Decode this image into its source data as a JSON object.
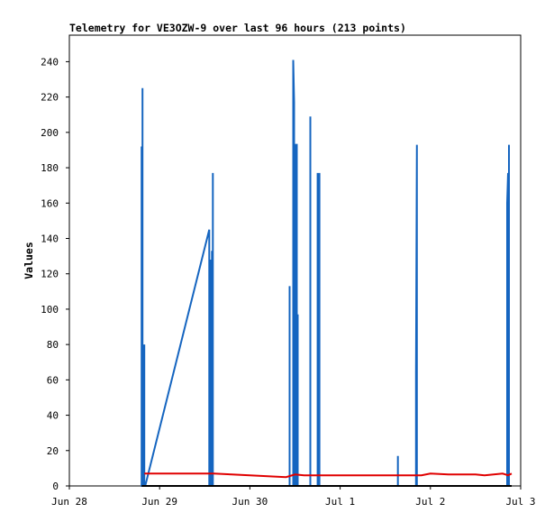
{
  "chart_data": {
    "type": "line",
    "title": "Telemetry for VE3OZW-9 over last 96 hours (213 points)",
    "xlabel": "",
    "ylabel": "Values",
    "x_tick_labels": [
      "Jun 28",
      "Jun 29",
      "Jun 30",
      "Jul 1",
      "Jul 2",
      "Jul 3"
    ],
    "x_tick_values": [
      0,
      1,
      2,
      3,
      4,
      5
    ],
    "xlim": [
      0,
      5
    ],
    "ylim": [
      0,
      255
    ],
    "y_ticks": [
      0,
      20,
      40,
      60,
      80,
      100,
      120,
      140,
      160,
      180,
      200,
      220,
      240
    ],
    "grid": false,
    "legend": "none",
    "series": [
      {
        "color": "#1565c0",
        "points": [
          [
            0.8,
            0
          ],
          [
            0.8,
            192
          ],
          [
            0.8,
            0
          ],
          [
            0.81,
            0
          ],
          [
            0.81,
            225
          ],
          [
            0.81,
            0
          ],
          [
            0.82,
            0
          ],
          [
            0.82,
            40
          ],
          [
            0.82,
            0
          ],
          [
            0.83,
            0
          ],
          [
            0.83,
            80
          ],
          [
            0.83,
            0
          ],
          [
            0.84,
            0
          ],
          [
            1.55,
            145
          ],
          [
            1.55,
            0
          ],
          [
            1.56,
            0
          ],
          [
            1.56,
            128
          ],
          [
            1.56,
            0
          ],
          [
            1.57,
            0
          ],
          [
            1.57,
            45
          ],
          [
            1.57,
            0
          ],
          [
            1.58,
            0
          ],
          [
            1.58,
            133
          ],
          [
            1.58,
            0
          ],
          [
            1.59,
            0
          ],
          [
            1.59,
            177
          ],
          [
            1.59,
            0
          ],
          [
            2.44,
            0
          ],
          [
            2.44,
            113
          ],
          [
            2.44,
            0
          ],
          [
            2.48,
            0
          ],
          [
            2.48,
            241
          ],
          [
            2.49,
            217
          ],
          [
            2.49,
            0
          ],
          [
            2.5,
            0
          ],
          [
            2.5,
            193
          ],
          [
            2.52,
            193
          ],
          [
            2.52,
            0
          ],
          [
            2.53,
            0
          ],
          [
            2.53,
            97
          ],
          [
            2.53,
            0
          ],
          [
            2.67,
            0
          ],
          [
            2.67,
            209
          ],
          [
            2.67,
            0
          ],
          [
            2.75,
            0
          ],
          [
            2.75,
            177
          ],
          [
            2.76,
            133
          ],
          [
            2.76,
            0
          ],
          [
            2.77,
            0
          ],
          [
            2.77,
            177
          ],
          [
            2.77,
            0
          ],
          [
            3.64,
            0
          ],
          [
            3.64,
            17
          ],
          [
            3.64,
            0
          ],
          [
            3.84,
            0
          ],
          [
            3.84,
            64
          ],
          [
            3.85,
            193
          ],
          [
            3.85,
            0
          ],
          [
            4.85,
            0
          ],
          [
            4.85,
            160
          ],
          [
            4.86,
            177
          ],
          [
            4.86,
            0
          ],
          [
            4.87,
            0
          ],
          [
            4.87,
            193
          ],
          [
            4.87,
            0
          ],
          [
            4.88,
            0
          ]
        ]
      },
      {
        "color": "#e00000",
        "points": [
          [
            0.83,
            7
          ],
          [
            1.2,
            7
          ],
          [
            1.6,
            7
          ],
          [
            1.8,
            6.5
          ],
          [
            2.0,
            6
          ],
          [
            2.2,
            5.5
          ],
          [
            2.4,
            5
          ],
          [
            2.5,
            6.5
          ],
          [
            2.6,
            6
          ],
          [
            2.8,
            6
          ],
          [
            3.2,
            6
          ],
          [
            3.6,
            6
          ],
          [
            3.9,
            6
          ],
          [
            4.0,
            7
          ],
          [
            4.2,
            6.5
          ],
          [
            4.5,
            6.5
          ],
          [
            4.6,
            6
          ],
          [
            4.8,
            7
          ],
          [
            4.86,
            6
          ],
          [
            4.9,
            7
          ]
        ]
      },
      {
        "color": "#000000",
        "points": [
          [
            0.8,
            0
          ],
          [
            4.9,
            0
          ]
        ]
      }
    ]
  }
}
